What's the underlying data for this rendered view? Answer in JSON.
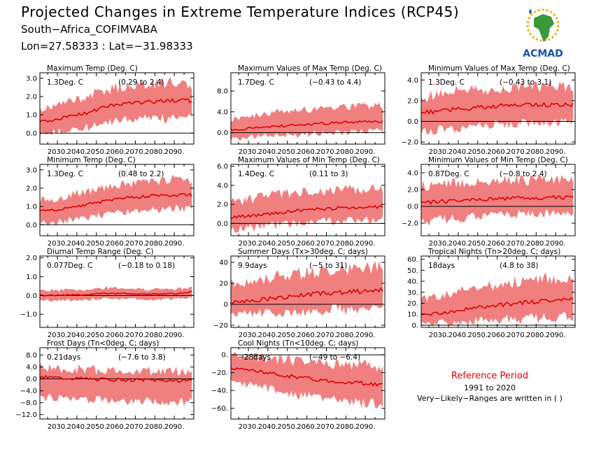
{
  "header": {
    "title": "Projected Changes in Extreme Temperature Indices (RCP45)",
    "subtitle": "South−Africa_COFIMVABA",
    "coords": "Lon=27.58333 : Lat=−31.98333",
    "logo_text": "ACMAD"
  },
  "reference": {
    "title": "Reference Period",
    "years": "1991 to 2020",
    "note": "Very−Likely−Ranges are written in ( )"
  },
  "colors": {
    "band": "#f08080",
    "line": "#e00000",
    "reference_title": "#e00000"
  },
  "chart_data": [
    {
      "type": "line",
      "title": "Maximum Temp (Deg. C)",
      "summary": "1.3Deg. C",
      "range": "(0.29 to 2.4)",
      "xlim": [
        2021,
        2100
      ],
      "ylim": [
        -0.6,
        3.3
      ],
      "xticks": [
        "2030.",
        "2040.",
        "2050.",
        "2060.",
        "2070.",
        "2080.",
        "2090."
      ],
      "yticks": [
        "0.0",
        "1.0",
        "2.0",
        "3.0"
      ],
      "x": [
        2025,
        2035,
        2045,
        2055,
        2065,
        2075,
        2085,
        2095,
        2099
      ],
      "median": [
        0.65,
        0.9,
        1.1,
        1.45,
        1.6,
        1.7,
        1.75,
        1.8,
        1.75
      ],
      "low": [
        0.0,
        0.2,
        0.35,
        0.6,
        0.75,
        0.85,
        0.85,
        0.9,
        0.85
      ],
      "high": [
        1.3,
        1.65,
        1.95,
        2.3,
        2.5,
        2.6,
        2.7,
        2.7,
        2.6
      ]
    },
    {
      "type": "line",
      "title": "Maximum Values of Max Temp (Deg. C)",
      "summary": "1.7Deg. C",
      "range": "(−0.43 to 4.4)",
      "xlim": [
        2021,
        2100
      ],
      "ylim": [
        -2.2,
        11.5
      ],
      "xticks": [
        "2030.",
        "2040.",
        "2050.",
        "2060.",
        "2070.",
        "2080.",
        "2090."
      ],
      "yticks": [
        "0.0",
        "4.0",
        "8.0"
      ],
      "x": [
        2025,
        2035,
        2045,
        2055,
        2065,
        2075,
        2085,
        2095,
        2099
      ],
      "median": [
        0.6,
        1.0,
        1.2,
        1.5,
        1.7,
        1.9,
        2.0,
        2.1,
        2.2
      ],
      "low": [
        -1.1,
        -0.7,
        -0.5,
        -0.2,
        0.0,
        0.2,
        0.3,
        0.4,
        0.4
      ],
      "high": [
        2.6,
        3.2,
        3.8,
        4.2,
        4.6,
        4.8,
        4.9,
        5.0,
        5.0
      ]
    },
    {
      "type": "line",
      "title": "Minimum Values of Max Temp (Deg. C)",
      "summary": "1.3Deg. C",
      "range": "(−0.43 to 3.1)",
      "xlim": [
        2021,
        2100
      ],
      "ylim": [
        -2.2,
        4.7
      ],
      "xticks": [
        "2030.",
        "2040.",
        "2050.",
        "2060.",
        "2070.",
        "2080.",
        "2090."
      ],
      "yticks": [
        "−2.0",
        "0.0",
        "2.0",
        "4.0"
      ],
      "x": [
        2025,
        2035,
        2045,
        2055,
        2065,
        2075,
        2085,
        2095,
        2099
      ],
      "median": [
        0.9,
        1.1,
        1.25,
        1.4,
        1.55,
        1.6,
        1.6,
        1.65,
        1.6
      ],
      "low": [
        -0.9,
        -0.6,
        -0.4,
        -0.2,
        -0.1,
        0.0,
        0.0,
        0.0,
        0.0
      ],
      "high": [
        2.3,
        2.7,
        2.9,
        3.0,
        3.2,
        3.2,
        3.3,
        3.3,
        3.2
      ]
    },
    {
      "type": "line",
      "title": "Minimum Temp (Deg. C)",
      "summary": "1.3Deg. C",
      "range": "(0.48 to 2.2)",
      "xlim": [
        2021,
        2100
      ],
      "ylim": [
        -0.6,
        3.3
      ],
      "xticks": [
        "2030.",
        "2040.",
        "2050.",
        "2060.",
        "2070.",
        "2080.",
        "2090."
      ],
      "yticks": [
        "0.0",
        "1.0",
        "2.0",
        "3.0"
      ],
      "x": [
        2025,
        2035,
        2045,
        2055,
        2065,
        2075,
        2085,
        2095,
        2099
      ],
      "median": [
        0.75,
        0.9,
        1.1,
        1.3,
        1.45,
        1.55,
        1.6,
        1.65,
        1.6
      ],
      "low": [
        0.1,
        0.25,
        0.45,
        0.6,
        0.75,
        0.85,
        0.9,
        0.95,
        0.9
      ],
      "high": [
        1.3,
        1.55,
        1.8,
        2.0,
        2.2,
        2.3,
        2.4,
        2.5,
        2.4
      ]
    },
    {
      "type": "line",
      "title": "Maximum Values of Min Temp (Deg. C)",
      "summary": "1.4Deg. C",
      "range": "(0.11 to 3)",
      "xlim": [
        2021,
        2100
      ],
      "ylim": [
        -1.3,
        6.2
      ],
      "xticks": [
        "2030.",
        "2040.",
        "2050.",
        "2060.",
        "2070.",
        "2080.",
        "2090."
      ],
      "yticks": [
        "0.0",
        "2.0",
        "4.0",
        "6.0"
      ],
      "x": [
        2025,
        2035,
        2045,
        2055,
        2065,
        2075,
        2085,
        2095,
        2099
      ],
      "median": [
        0.7,
        0.9,
        1.1,
        1.3,
        1.5,
        1.6,
        1.7,
        1.75,
        1.7
      ],
      "low": [
        -0.5,
        -0.3,
        -0.1,
        0.1,
        0.25,
        0.35,
        0.4,
        0.45,
        0.4
      ],
      "high": [
        2.2,
        2.6,
        2.9,
        3.1,
        3.3,
        3.4,
        3.5,
        3.5,
        3.4
      ]
    },
    {
      "type": "line",
      "title": "Minimum Values of Min Temp (Deg. C)",
      "summary": "0.87Deg. C",
      "range": "(−0.8 to 2.4)",
      "xlim": [
        2021,
        2100
      ],
      "ylim": [
        -3.5,
        5.0
      ],
      "xticks": [
        "2030.",
        "2040.",
        "2050.",
        "2060.",
        "2070.",
        "2080.",
        "2090."
      ],
      "yticks": [
        "−2.0",
        "0.0",
        "2.0",
        "4.0"
      ],
      "x": [
        2025,
        2035,
        2045,
        2055,
        2065,
        2075,
        2085,
        2095,
        2099
      ],
      "median": [
        0.5,
        0.6,
        0.75,
        0.85,
        0.95,
        1.0,
        1.05,
        1.05,
        1.0
      ],
      "low": [
        -1.6,
        -1.4,
        -1.2,
        -1.0,
        -0.9,
        -0.8,
        -0.8,
        -0.8,
        -0.8
      ],
      "high": [
        2.4,
        2.6,
        2.8,
        2.9,
        3.0,
        3.0,
        3.1,
        3.1,
        3.0
      ]
    },
    {
      "type": "line",
      "title": "Diurnal Temp Range (Deg. C)",
      "summary": "0.077Deg. C",
      "range": "(−0.18 to 0.18)",
      "xlim": [
        2021,
        2100
      ],
      "ylim": [
        -1.7,
        2.1
      ],
      "xticks": [
        "2030.",
        "2040.",
        "2050.",
        "2060.",
        "2070.",
        "2080.",
        "2090."
      ],
      "yticks": [
        "−1.0",
        "0.0",
        "1.0",
        "2.0"
      ],
      "x": [
        2025,
        2035,
        2045,
        2055,
        2065,
        2075,
        2085,
        2095,
        2099
      ],
      "median": [
        0.0,
        0.02,
        0.05,
        0.12,
        0.1,
        0.08,
        0.08,
        0.12,
        0.2
      ],
      "low": [
        -0.25,
        -0.25,
        -0.2,
        -0.15,
        -0.15,
        -0.18,
        -0.2,
        -0.15,
        -0.1
      ],
      "high": [
        0.25,
        0.3,
        0.3,
        0.4,
        0.35,
        0.3,
        0.3,
        0.35,
        0.45
      ]
    },
    {
      "type": "line",
      "title": "Summer Days (Tx>30deg. C; days)",
      "summary": "9.9days",
      "range": "(−5 to 31)",
      "xlim": [
        2021,
        2100
      ],
      "ylim": [
        -22,
        46
      ],
      "xticks": [
        "2030.",
        "2040.",
        "2050.",
        "2060.",
        "2070.",
        "2080.",
        "2090."
      ],
      "yticks": [
        "−20",
        "0",
        "20",
        "40"
      ],
      "x": [
        2025,
        2035,
        2045,
        2055,
        2065,
        2075,
        2085,
        2095,
        2099
      ],
      "median": [
        2,
        4,
        6,
        8,
        10,
        11,
        12,
        13,
        14
      ],
      "low": [
        -9,
        -8,
        -7,
        -6,
        -5,
        -4,
        -4,
        -3,
        -3
      ],
      "high": [
        18,
        22,
        26,
        28,
        30,
        32,
        33,
        34,
        33
      ]
    },
    {
      "type": "line",
      "title": "Tropical Nights (Tn>20deg. C; days)",
      "summary": "18days",
      "range": "(4.8 to 38)",
      "xlim": [
        2021,
        2100
      ],
      "ylim": [
        -2,
        63
      ],
      "xticks": [
        "2030.",
        "2040.",
        "2050.",
        "2060.",
        "2070.",
        "2080.",
        "2090."
      ],
      "yticks": [
        "0.",
        "10.",
        "20.",
        "30.",
        "40.",
        "50.",
        "60."
      ],
      "x": [
        2025,
        2035,
        2045,
        2055,
        2065,
        2075,
        2085,
        2095,
        2099
      ],
      "median": [
        10,
        12,
        15,
        17,
        19,
        21,
        22,
        23,
        24
      ],
      "low": [
        2,
        3,
        4,
        5,
        6,
        7,
        8,
        9,
        8
      ],
      "high": [
        24,
        28,
        32,
        35,
        38,
        40,
        41,
        42,
        41
      ]
    },
    {
      "type": "line",
      "title": "Frost Days (Tn<0deg. C; days)",
      "summary": "0.21days",
      "range": "(−7.6 to 3.8)",
      "xlim": [
        2021,
        2100
      ],
      "ylim": [
        -13.5,
        10.5
      ],
      "xticks": [
        "2030.",
        "2040.",
        "2050.",
        "2060.",
        "2070.",
        "2080.",
        "2090."
      ],
      "yticks": [
        "−12.0",
        "−8.0",
        "−4.0",
        "0.0",
        "4.0",
        "8.0"
      ],
      "x": [
        2025,
        2035,
        2045,
        2055,
        2065,
        2075,
        2085,
        2095,
        2099
      ],
      "median": [
        0.5,
        0.2,
        0.0,
        -0.2,
        -0.3,
        -0.4,
        -0.5,
        -0.5,
        -0.5
      ],
      "low": [
        -6,
        -6.5,
        -6.8,
        -7.0,
        -7.2,
        -7.3,
        -7.4,
        -7.5,
        -7.4
      ],
      "high": [
        3.5,
        3.0,
        2.8,
        2.5,
        2.4,
        2.3,
        2.2,
        2.2,
        2.2
      ]
    },
    {
      "type": "line",
      "title": "Cool Nights (Tn<10deg. C; days)",
      "summary": "−28days",
      "range": "(−49 to −6.4)",
      "xlim": [
        2021,
        2100
      ],
      "ylim": [
        -72,
        8
      ],
      "xticks": [
        "2030.",
        "2040.",
        "2050.",
        "2060.",
        "2070.",
        "2080.",
        "2090."
      ],
      "yticks": [
        "−60.",
        "−40.",
        "−20.",
        "0."
      ],
      "x": [
        2025,
        2035,
        2045,
        2055,
        2065,
        2075,
        2085,
        2095,
        2099
      ],
      "median": [
        -15,
        -19,
        -22,
        -25,
        -28,
        -30,
        -31,
        -33,
        -34
      ],
      "low": [
        -30,
        -35,
        -40,
        -44,
        -47,
        -50,
        -52,
        -54,
        -55
      ],
      "high": [
        -2,
        -4,
        -6,
        -8,
        -10,
        -12,
        -13,
        -14,
        -15
      ]
    }
  ]
}
